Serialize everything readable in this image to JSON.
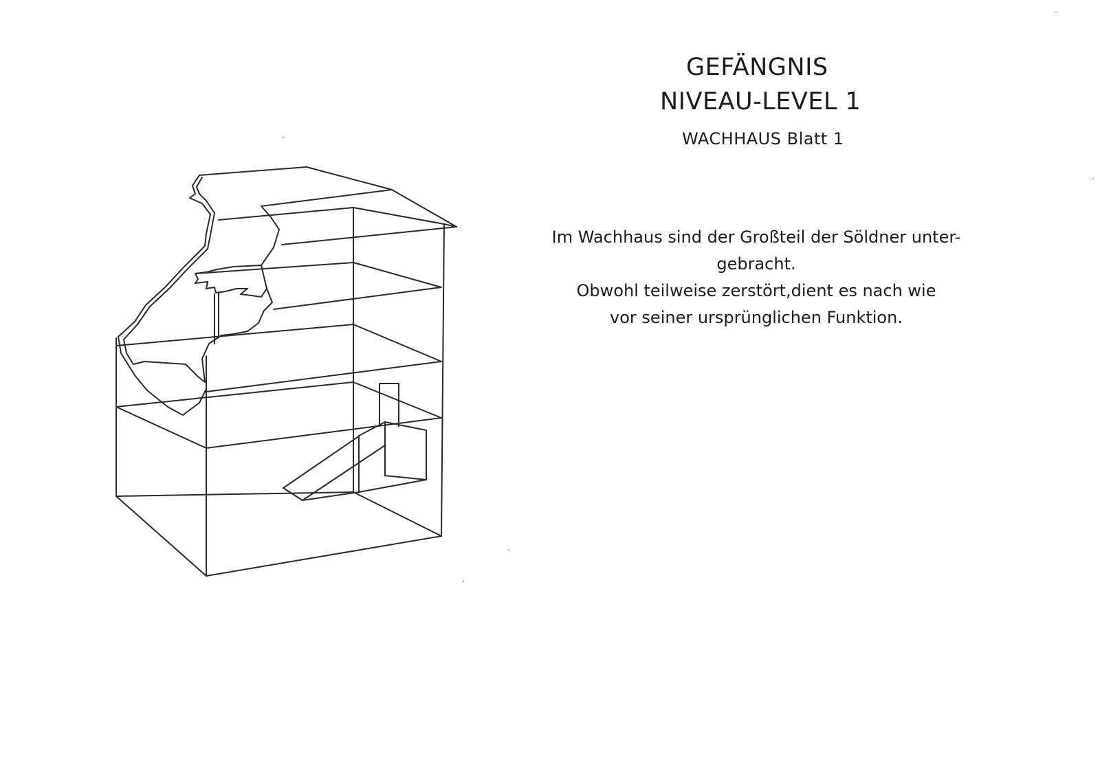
{
  "document": {
    "heading": {
      "line1": "GEFÄNGNIS",
      "line2": "NIVEAU-LEVEL 1",
      "line3": "WACHHAUS Blatt 1"
    },
    "description": {
      "line1": "Im Wachhaus sind der Großteil der Söldner unter-",
      "line2": "gebracht.",
      "line3": "Obwohl teilweise zerstört,dient es nach wie",
      "line4": "vor seiner ursprünglichen Funktion."
    }
  }
}
